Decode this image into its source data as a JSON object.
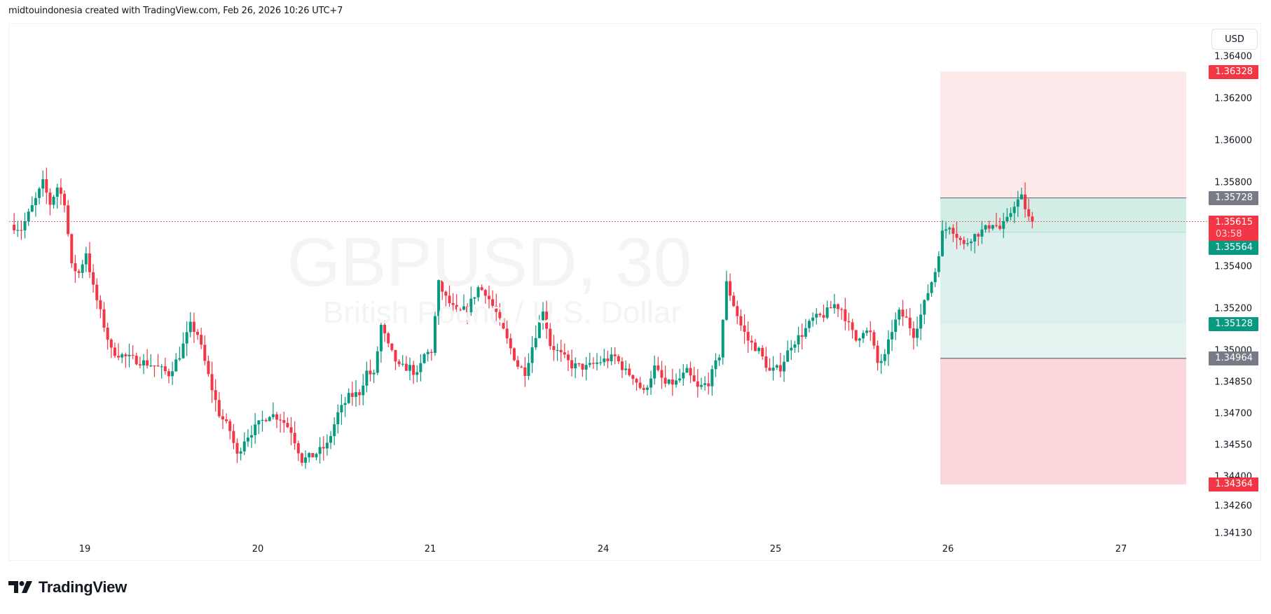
{
  "header": {
    "caption": "midtouindonesia created with TradingView.com, Feb 26, 2026 10:26 UTC+7"
  },
  "symbol": {
    "ticker_interval": "GBPUSD, 30",
    "description": "British Pound / U.S. Dollar",
    "currency": "USD"
  },
  "colors": {
    "up": "#089981",
    "down": "#f23645",
    "stop_zone": "#fde8ea",
    "stop_zone_lower": "#fbd6da",
    "target_zone": "#d2ece6",
    "target_zone_light": "#e5f4f1",
    "entry_gray": "#787b86",
    "last_price_line": "#f23645"
  },
  "price_axis": {
    "ticks": [
      "1.36400",
      "1.36200",
      "1.36000",
      "1.35800",
      "1.35400",
      "1.35200",
      "1.35000",
      "1.34850",
      "1.34700",
      "1.34550",
      "1.34400",
      "1.34260",
      "1.34130"
    ],
    "labels": [
      {
        "value": "1.36328",
        "kind": "stop",
        "color": "#f23645"
      },
      {
        "value": "1.35728",
        "kind": "entry",
        "color": "#787b86"
      },
      {
        "value": "1.35615",
        "countdown": "03:58",
        "kind": "last-price",
        "color": "#f23645"
      },
      {
        "value": "1.35564",
        "kind": "entry-fill",
        "color": "#089981"
      },
      {
        "value": "1.35128",
        "kind": "target",
        "color": "#089981"
      },
      {
        "value": "1.34964",
        "kind": "entry-2",
        "color": "#787b86"
      },
      {
        "value": "1.34364",
        "kind": "stop-2",
        "color": "#f23645"
      }
    ]
  },
  "time_axis": {
    "labels": [
      "19",
      "20",
      "21",
      "24",
      "25",
      "26",
      "27"
    ]
  },
  "branding": {
    "logo_text": "TradingView"
  },
  "chart_data": {
    "type": "candlestick",
    "title": "GBPUSD, 30",
    "subtitle": "British Pound / U.S. Dollar",
    "xlabel": "",
    "ylabel": "USD",
    "x_ticks": [
      "19",
      "20",
      "21",
      "24",
      "25",
      "26",
      "27"
    ],
    "ylim": [
      1.3406,
      1.3648
    ],
    "last_price": 1.35615,
    "countdown": "03:58",
    "position_tools": [
      {
        "type": "short",
        "entry": 1.35728,
        "stop": 1.36328,
        "target": 1.35128
      },
      {
        "type": "long",
        "entry": 1.34964,
        "stop": 1.34364,
        "target": 1.35564
      }
    ],
    "price_path": [
      [
        0,
        1.356
      ],
      [
        3,
        1.3558
      ],
      [
        7,
        1.3572
      ],
      [
        9,
        1.358
      ],
      [
        11,
        1.357
      ],
      [
        13,
        1.3578
      ],
      [
        15,
        1.3571
      ],
      [
        17,
        1.354
      ],
      [
        19,
        1.3537
      ],
      [
        21,
        1.3547
      ],
      [
        23,
        1.353
      ],
      [
        26,
        1.3512
      ],
      [
        28,
        1.35
      ],
      [
        32,
        1.3497
      ],
      [
        36,
        1.3495
      ],
      [
        40,
        1.3493
      ],
      [
        44,
        1.3489
      ],
      [
        47,
        1.3498
      ],
      [
        50,
        1.3512
      ],
      [
        52,
        1.3508
      ],
      [
        55,
        1.3488
      ],
      [
        58,
        1.347
      ],
      [
        61,
        1.3462
      ],
      [
        63,
        1.345
      ],
      [
        65,
        1.3458
      ],
      [
        69,
        1.3465
      ],
      [
        72,
        1.347
      ],
      [
        75,
        1.3468
      ],
      [
        78,
        1.3462
      ],
      [
        81,
        1.3448
      ],
      [
        84,
        1.345
      ],
      [
        88,
        1.3455
      ],
      [
        91,
        1.347
      ],
      [
        94,
        1.3478
      ],
      [
        97,
        1.348
      ],
      [
        99,
        1.349
      ],
      [
        101,
        1.3488
      ],
      [
        103,
        1.3512
      ],
      [
        105,
        1.3502
      ],
      [
        108,
        1.3492
      ],
      [
        111,
        1.3492
      ],
      [
        113,
        1.3488
      ],
      [
        115,
        1.3498
      ],
      [
        117,
        1.35
      ],
      [
        119,
        1.3532
      ],
      [
        121,
        1.3525
      ],
      [
        124,
        1.3518
      ],
      [
        127,
        1.352
      ],
      [
        130,
        1.353
      ],
      [
        132,
        1.3528
      ],
      [
        135,
        1.3518
      ],
      [
        138,
        1.3505
      ],
      [
        141,
        1.3493
      ],
      [
        143,
        1.349
      ],
      [
        146,
        1.3508
      ],
      [
        148,
        1.352
      ],
      [
        150,
        1.3503
      ],
      [
        153,
        1.3498
      ],
      [
        156,
        1.3493
      ],
      [
        160,
        1.3492
      ],
      [
        164,
        1.3495
      ],
      [
        168,
        1.3497
      ],
      [
        171,
        1.349
      ],
      [
        173,
        1.3488
      ],
      [
        176,
        1.348
      ],
      [
        179,
        1.3492
      ],
      [
        182,
        1.3484
      ],
      [
        185,
        1.3485
      ],
      [
        188,
        1.349
      ],
      [
        191,
        1.3482
      ],
      [
        194,
        1.3485
      ],
      [
        197,
        1.3498
      ],
      [
        199,
        1.3532
      ],
      [
        201,
        1.3522
      ],
      [
        203,
        1.3512
      ],
      [
        205,
        1.3505
      ],
      [
        208,
        1.35
      ],
      [
        211,
        1.349
      ],
      [
        214,
        1.3492
      ],
      [
        217,
        1.3503
      ],
      [
        220,
        1.3508
      ],
      [
        223,
        1.3515
      ],
      [
        226,
        1.3517
      ],
      [
        229,
        1.3522
      ],
      [
        231,
        1.352
      ],
      [
        233,
        1.3512
      ],
      [
        235,
        1.3505
      ],
      [
        237,
        1.351
      ],
      [
        239,
        1.3508
      ],
      [
        241,
        1.3494
      ],
      [
        243,
        1.3497
      ],
      [
        245,
        1.351
      ],
      [
        247,
        1.3518
      ],
      [
        249,
        1.3515
      ],
      [
        251,
        1.3508
      ],
      [
        253,
        1.3517
      ],
      [
        255,
        1.3528
      ],
      [
        257,
        1.3538
      ],
      [
        259,
        1.3556
      ],
      [
        261,
        1.356
      ],
      [
        263,
        1.3555
      ],
      [
        265,
        1.355
      ],
      [
        267,
        1.3554
      ],
      [
        269,
        1.3556
      ],
      [
        271,
        1.3558
      ],
      [
        273,
        1.3561
      ],
      [
        275,
        1.3558
      ],
      [
        277,
        1.3562
      ],
      [
        279,
        1.357
      ],
      [
        281,
        1.3573
      ],
      [
        283,
        1.3563
      ],
      [
        284,
        1.35615
      ]
    ]
  }
}
